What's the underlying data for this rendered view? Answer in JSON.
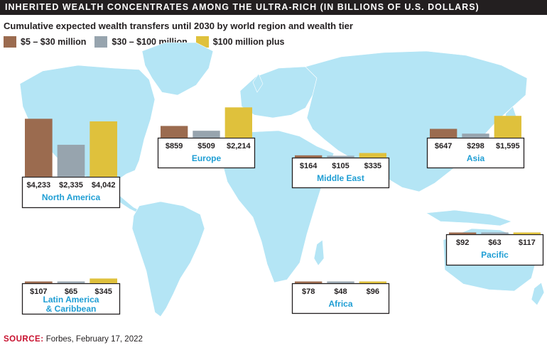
{
  "header": {
    "title": "INHERITED WEALTH CONCENTRATES AMONG THE ULTRA-RICH (IN BILLIONS OF U.S. DOLLARS)",
    "subtitle": "Cumulative expected wealth transfers until 2030 by world region and wealth tier"
  },
  "source": {
    "label": "SOURCE:",
    "text": "Forbes, February 17, 2022"
  },
  "colors": {
    "tier1": "#9b6b4f",
    "tier2": "#97a4ae",
    "tier3": "#dfc13c",
    "region_label": "#1f9ed4",
    "map": "#b4e5f5"
  },
  "chart_data": {
    "type": "bar",
    "title": "INHERITED WEALTH CONCENTRATES AMONG THE ULTRA-RICH (IN BILLIONS OF U.S. DOLLARS)",
    "subtitle": "Cumulative expected wealth transfers until 2030 by world region and wealth tier",
    "legend_position": "top-left",
    "categories": [
      "North America",
      "Europe",
      "Asia",
      "Middle East",
      "Latin America & Caribbean",
      "Pacific",
      "Africa"
    ],
    "series": [
      {
        "name": "$5 – $30 million",
        "color": "#9b6b4f",
        "values": [
          4233,
          859,
          647,
          164,
          107,
          92,
          78
        ],
        "labels": [
          "$4,233",
          "$859",
          "$647",
          "$164",
          "$107",
          "$92",
          "$78"
        ]
      },
      {
        "name": "$30 – $100 million",
        "color": "#97a4ae",
        "values": [
          2335,
          509,
          298,
          105,
          65,
          63,
          48
        ],
        "labels": [
          "$2,335",
          "$509",
          "$298",
          "$105",
          "$65",
          "$63",
          "$48"
        ]
      },
      {
        "name": "$100 million plus",
        "color": "#dfc13c",
        "values": [
          4042,
          2214,
          1595,
          335,
          345,
          117,
          96
        ],
        "labels": [
          "$4,042",
          "$2,214",
          "$1,595",
          "$335",
          "$345",
          "$117",
          "$96"
        ]
      }
    ],
    "region_labels": [
      [
        "North America"
      ],
      [
        "Europe"
      ],
      [
        "Asia"
      ],
      [
        "Middle East"
      ],
      [
        "Latin America",
        "& Caribbean"
      ],
      [
        "Pacific"
      ],
      [
        "Africa"
      ]
    ]
  }
}
